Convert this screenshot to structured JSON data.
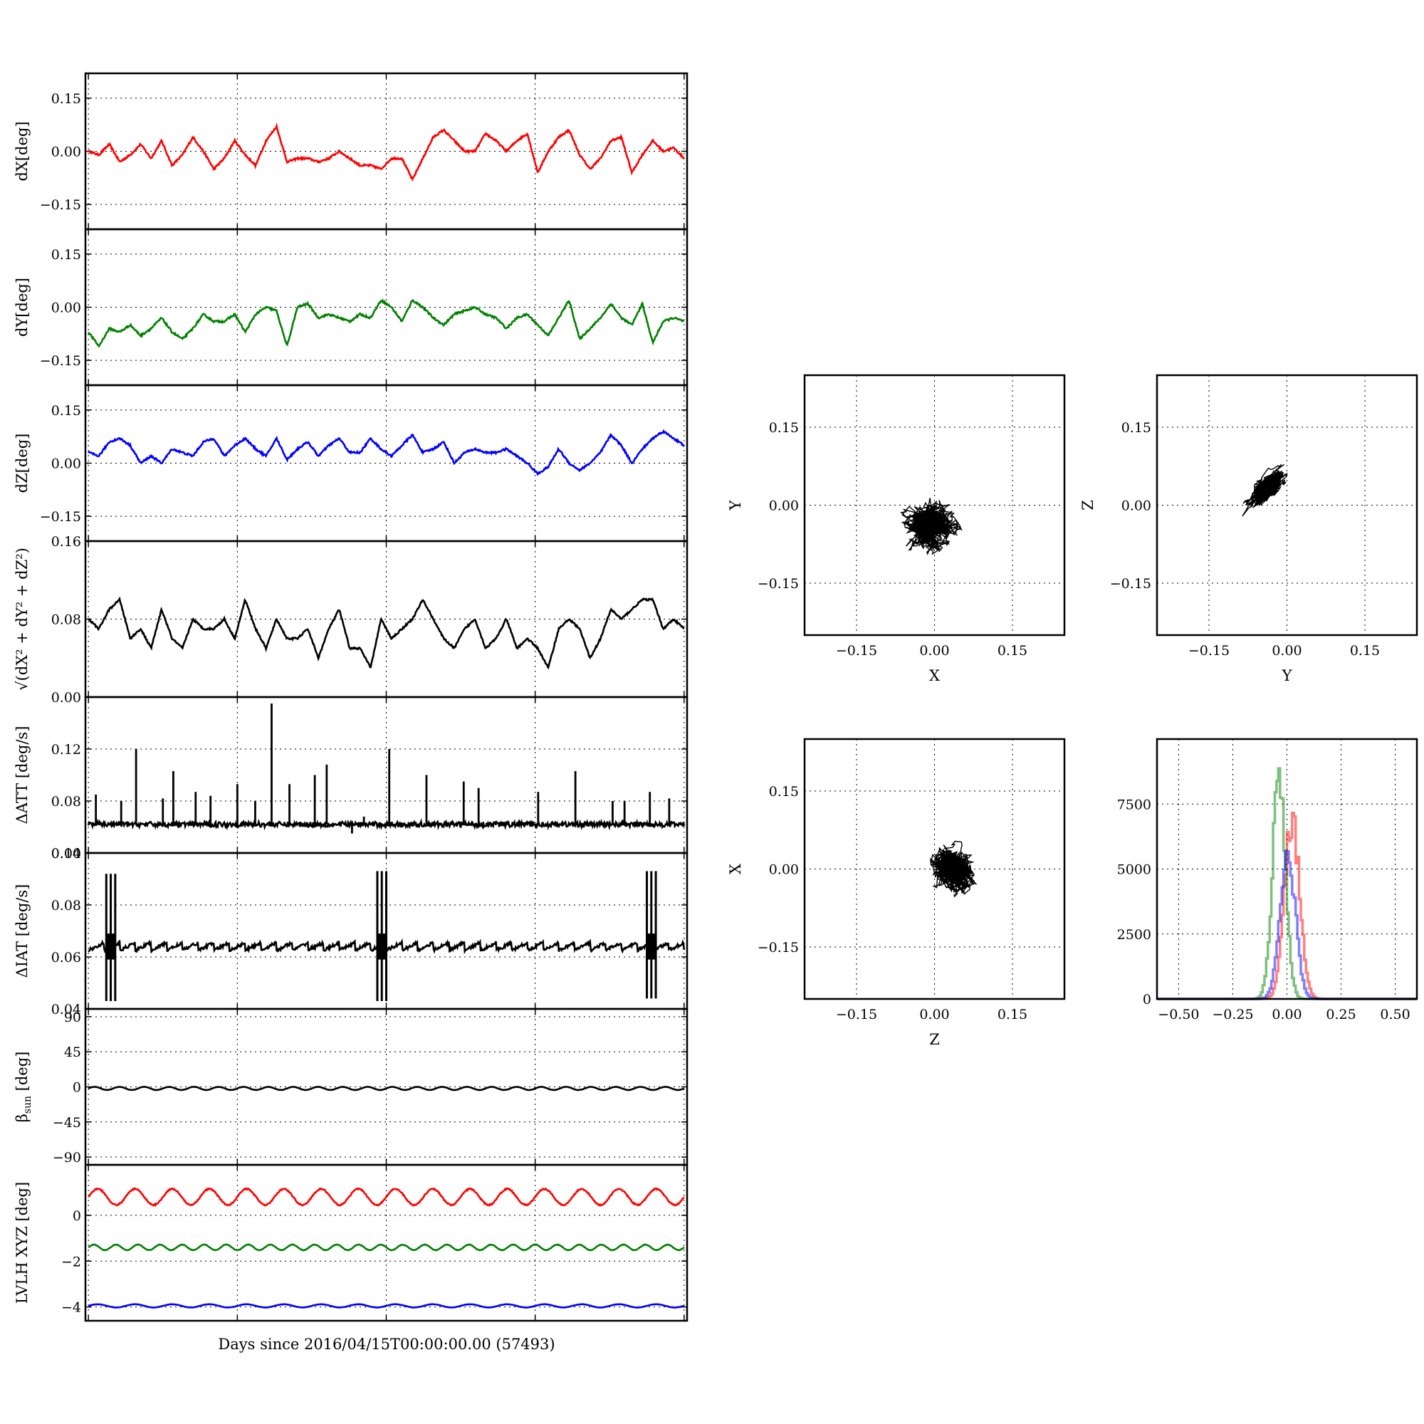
{
  "figure": {
    "xlabel": "Days since 2016/04/15T00:00:00.00 (57493)"
  },
  "chart_data": [
    {
      "id": "dx",
      "type": "line",
      "ylabel": "dX[deg]",
      "ylim": [
        -0.22,
        0.22
      ],
      "yticks": [
        -0.15,
        0.0,
        0.15
      ],
      "yticklabels": [
        "−0.15",
        "0.00",
        "0.15"
      ],
      "xlim": [
        -0.02,
        4.02
      ],
      "grid": true,
      "series": [
        {
          "color": "#ff0000",
          "y": [
            0.0,
            -0.01,
            0.02,
            -0.03,
            -0.01,
            0.02,
            -0.02,
            0.03,
            -0.04,
            -0.01,
            0.04,
            0.0,
            -0.05,
            -0.02,
            0.03,
            -0.01,
            -0.04,
            0.03,
            0.07,
            -0.03,
            -0.02,
            -0.02,
            -0.03,
            -0.02,
            0.0,
            -0.02,
            -0.04,
            -0.04,
            -0.05,
            -0.02,
            -0.02,
            -0.08,
            -0.02,
            0.04,
            0.06,
            0.03,
            0.0,
            0.0,
            0.05,
            0.03,
            0.0,
            0.03,
            0.05,
            -0.06,
            0.0,
            0.04,
            0.06,
            -0.01,
            -0.05,
            -0.02,
            0.03,
            0.04,
            -0.06,
            -0.01,
            0.03,
            0.0,
            0.01,
            -0.02
          ]
        }
      ]
    },
    {
      "id": "dy",
      "type": "line",
      "ylabel": "dY[deg]",
      "ylim": [
        -0.22,
        0.22
      ],
      "yticks": [
        -0.15,
        0.0,
        0.15
      ],
      "yticklabels": [
        "−0.15",
        "0.00",
        "0.15"
      ],
      "xlim": [
        -0.02,
        4.02
      ],
      "grid": true,
      "series": [
        {
          "color": "#008000",
          "y": [
            -0.07,
            -0.11,
            -0.06,
            -0.07,
            -0.05,
            -0.08,
            -0.06,
            -0.03,
            -0.07,
            -0.09,
            -0.06,
            -0.02,
            -0.04,
            -0.04,
            -0.02,
            -0.07,
            -0.02,
            0.0,
            -0.01,
            -0.11,
            0.0,
            0.01,
            -0.03,
            -0.02,
            -0.03,
            -0.04,
            -0.02,
            -0.03,
            0.02,
            0.0,
            -0.04,
            0.02,
            0.0,
            -0.03,
            -0.05,
            -0.02,
            -0.01,
            0.0,
            -0.02,
            -0.03,
            -0.06,
            -0.03,
            -0.02,
            -0.05,
            -0.08,
            -0.03,
            0.02,
            -0.09,
            -0.06,
            -0.03,
            0.01,
            -0.03,
            -0.05,
            0.01,
            -0.1,
            -0.04,
            -0.03,
            -0.04
          ]
        }
      ]
    },
    {
      "id": "dz",
      "type": "line",
      "ylabel": "dZ[deg]",
      "ylim": [
        -0.22,
        0.22
      ],
      "yticks": [
        -0.15,
        0.0,
        0.15
      ],
      "yticklabels": [
        "−0.15",
        "0.00",
        "0.15"
      ],
      "xlim": [
        -0.02,
        4.02
      ],
      "grid": true,
      "series": [
        {
          "color": "#0000ff",
          "y": [
            0.03,
            0.02,
            0.06,
            0.07,
            0.05,
            0.0,
            0.02,
            0.0,
            0.04,
            0.03,
            0.02,
            0.06,
            0.07,
            0.02,
            0.05,
            0.07,
            0.04,
            0.02,
            0.07,
            0.01,
            0.04,
            0.06,
            0.02,
            0.05,
            0.07,
            0.03,
            0.03,
            0.07,
            0.04,
            0.02,
            0.05,
            0.08,
            0.03,
            0.04,
            0.06,
            0.0,
            0.03,
            0.04,
            0.03,
            0.03,
            0.04,
            0.02,
            0.0,
            -0.03,
            -0.01,
            0.04,
            0.0,
            -0.02,
            0.0,
            0.03,
            0.08,
            0.05,
            0.0,
            0.04,
            0.07,
            0.09,
            0.07,
            0.05
          ]
        }
      ]
    },
    {
      "id": "dr",
      "type": "line",
      "ylabel": "√(dX² + dY² + dZ²)",
      "ylim": [
        0.0,
        0.16
      ],
      "yticks": [
        0.0,
        0.08,
        0.16
      ],
      "yticklabels": [
        "0.00",
        "0.08",
        "0.16"
      ],
      "xlim": [
        -0.02,
        4.02
      ],
      "grid": true,
      "series": [
        {
          "color": "#000000",
          "y": [
            0.08,
            0.07,
            0.09,
            0.1,
            0.06,
            0.07,
            0.05,
            0.09,
            0.06,
            0.05,
            0.08,
            0.07,
            0.07,
            0.08,
            0.06,
            0.1,
            0.07,
            0.05,
            0.08,
            0.06,
            0.06,
            0.07,
            0.04,
            0.07,
            0.09,
            0.05,
            0.05,
            0.03,
            0.08,
            0.06,
            0.07,
            0.08,
            0.1,
            0.08,
            0.06,
            0.05,
            0.07,
            0.08,
            0.05,
            0.06,
            0.08,
            0.05,
            0.06,
            0.05,
            0.03,
            0.07,
            0.08,
            0.07,
            0.04,
            0.06,
            0.09,
            0.08,
            0.09,
            0.1,
            0.1,
            0.07,
            0.08,
            0.07
          ]
        }
      ]
    },
    {
      "id": "datt",
      "type": "line",
      "ylabel": "ΔATT [deg/s]",
      "ylim": [
        0.04,
        0.16
      ],
      "yticks": [
        0.04,
        0.08,
        0.12
      ],
      "yticklabels": [
        "0.04",
        "0.08",
        "0.12"
      ],
      "xlim": [
        -0.02,
        4.02
      ],
      "grid": true,
      "baseline": 0.062,
      "spikes": [
        {
          "x": 0.05,
          "y": 0.085
        },
        {
          "x": 0.22,
          "y": 0.08
        },
        {
          "x": 0.32,
          "y": 0.12
        },
        {
          "x": 0.5,
          "y": 0.082
        },
        {
          "x": 0.57,
          "y": 0.103
        },
        {
          "x": 0.72,
          "y": 0.087
        },
        {
          "x": 0.82,
          "y": 0.084
        },
        {
          "x": 1.0,
          "y": 0.093
        },
        {
          "x": 1.12,
          "y": 0.08
        },
        {
          "x": 1.23,
          "y": 0.155
        },
        {
          "x": 1.35,
          "y": 0.093
        },
        {
          "x": 1.52,
          "y": 0.1
        },
        {
          "x": 1.6,
          "y": 0.108
        },
        {
          "x": 1.77,
          "y": 0.055
        },
        {
          "x": 1.85,
          "y": 0.068
        },
        {
          "x": 2.02,
          "y": 0.12
        },
        {
          "x": 2.27,
          "y": 0.1
        },
        {
          "x": 2.52,
          "y": 0.095
        },
        {
          "x": 2.62,
          "y": 0.09
        },
        {
          "x": 3.02,
          "y": 0.087
        },
        {
          "x": 3.27,
          "y": 0.103
        },
        {
          "x": 3.52,
          "y": 0.08
        },
        {
          "x": 3.6,
          "y": 0.08
        },
        {
          "x": 3.77,
          "y": 0.087
        },
        {
          "x": 3.9,
          "y": 0.082
        }
      ]
    },
    {
      "id": "diat",
      "type": "line",
      "ylabel": "ΔIAT [deg/s]",
      "ylim": [
        0.04,
        0.1
      ],
      "yticks": [
        0.04,
        0.06,
        0.08,
        0.1
      ],
      "yticklabels": [
        "0.04",
        "0.06",
        "0.08",
        "0.10"
      ],
      "xlim": [
        -0.02,
        4.02
      ],
      "grid": true,
      "baseline": 0.064,
      "bursts": [
        {
          "x": 0.15,
          "ymin": 0.043,
          "ymax": 0.092
        },
        {
          "x": 1.97,
          "ymin": 0.043,
          "ymax": 0.093
        },
        {
          "x": 3.78,
          "ymin": 0.044,
          "ymax": 0.093
        }
      ]
    },
    {
      "id": "beta",
      "type": "line",
      "ylabel": "β",
      "ylabel_sub": "sun",
      "ylabel_unit": " [deg]",
      "ylim": [
        -100,
        100
      ],
      "yticks": [
        -90,
        -45,
        0,
        45,
        90
      ],
      "yticklabels": [
        "−90",
        "−45",
        "0",
        "45",
        "90"
      ],
      "xlim": [
        -0.02,
        4.02
      ],
      "grid": true,
      "series": [
        {
          "color": "#000000",
          "mean": -2,
          "amplitude": 2,
          "cycles": 24
        }
      ]
    },
    {
      "id": "lvlh",
      "type": "line",
      "ylabel": "LVLH XYZ [deg]",
      "ylim": [
        -4.6,
        2.2
      ],
      "yticks": [
        -4,
        -2,
        0
      ],
      "yticklabels": [
        "−4",
        "−2",
        "0"
      ],
      "xlim": [
        -0.02,
        4.02
      ],
      "grid": true,
      "series": [
        {
          "color": "#ff0000",
          "mean": 0.8,
          "amplitude": 0.35,
          "cycles": 16
        },
        {
          "color": "#008000",
          "mean": -1.4,
          "amplitude": 0.12,
          "cycles": 27
        },
        {
          "color": "#0000ff",
          "mean": -3.95,
          "amplitude": 0.07,
          "cycles": 16
        }
      ]
    },
    {
      "id": "xy",
      "type": "scatter",
      "xlabel": "X",
      "ylabel": "Y",
      "xlim": [
        -0.25,
        0.25
      ],
      "ylim": [
        -0.25,
        0.25
      ],
      "ticks": [
        -0.15,
        0.0,
        0.15
      ],
      "ticklabels": [
        "−0.15",
        "0.00",
        "0.15"
      ],
      "grid": true,
      "cloud": {
        "cx": -0.01,
        "cy": -0.04,
        "rx": 0.045,
        "ry": 0.04,
        "rho": 0.0
      }
    },
    {
      "id": "yz",
      "type": "scatter",
      "xlabel": "Y",
      "ylabel": "Z",
      "xlim": [
        -0.25,
        0.25
      ],
      "ylim": [
        -0.25,
        0.25
      ],
      "ticks": [
        -0.15,
        0.0,
        0.15
      ],
      "ticklabels": [
        "−0.15",
        "0.00",
        "0.15"
      ],
      "grid": true,
      "cloud": {
        "cx": -0.04,
        "cy": 0.03,
        "rx": 0.035,
        "ry": 0.035,
        "rho": 0.8
      }
    },
    {
      "id": "zx",
      "type": "scatter",
      "xlabel": "Z",
      "ylabel": "X",
      "xlim": [
        -0.25,
        0.25
      ],
      "ylim": [
        -0.25,
        0.25
      ],
      "ticks": [
        -0.15,
        0.0,
        0.15
      ],
      "ticklabels": [
        "−0.15",
        "0.00",
        "0.15"
      ],
      "grid": true,
      "cloud": {
        "cx": 0.04,
        "cy": 0.0,
        "rx": 0.035,
        "ry": 0.04,
        "rho": -0.2
      }
    },
    {
      "id": "hist",
      "type": "bar",
      "xlim": [
        -0.6,
        0.6
      ],
      "ylim": [
        0,
        10000
      ],
      "xticks": [
        -0.5,
        -0.25,
        0.0,
        0.25,
        0.5
      ],
      "xticklabels": [
        "−0.50",
        "−0.25",
        "0.00",
        "0.25",
        "0.50"
      ],
      "yticks": [
        0,
        2500,
        5000,
        7500
      ],
      "yticklabels": [
        "0",
        "2500",
        "5000",
        "7500"
      ],
      "grid": true,
      "series": [
        {
          "color": "#ff0000",
          "opacity": 0.5,
          "center": 0.02,
          "sigma": 0.035,
          "peak": 7200
        },
        {
          "color": "#008000",
          "opacity": 0.5,
          "center": -0.04,
          "sigma": 0.03,
          "peak": 9000
        },
        {
          "color": "#0000ff",
          "opacity": 0.5,
          "center": 0.0,
          "sigma": 0.035,
          "peak": 5900
        }
      ]
    }
  ]
}
